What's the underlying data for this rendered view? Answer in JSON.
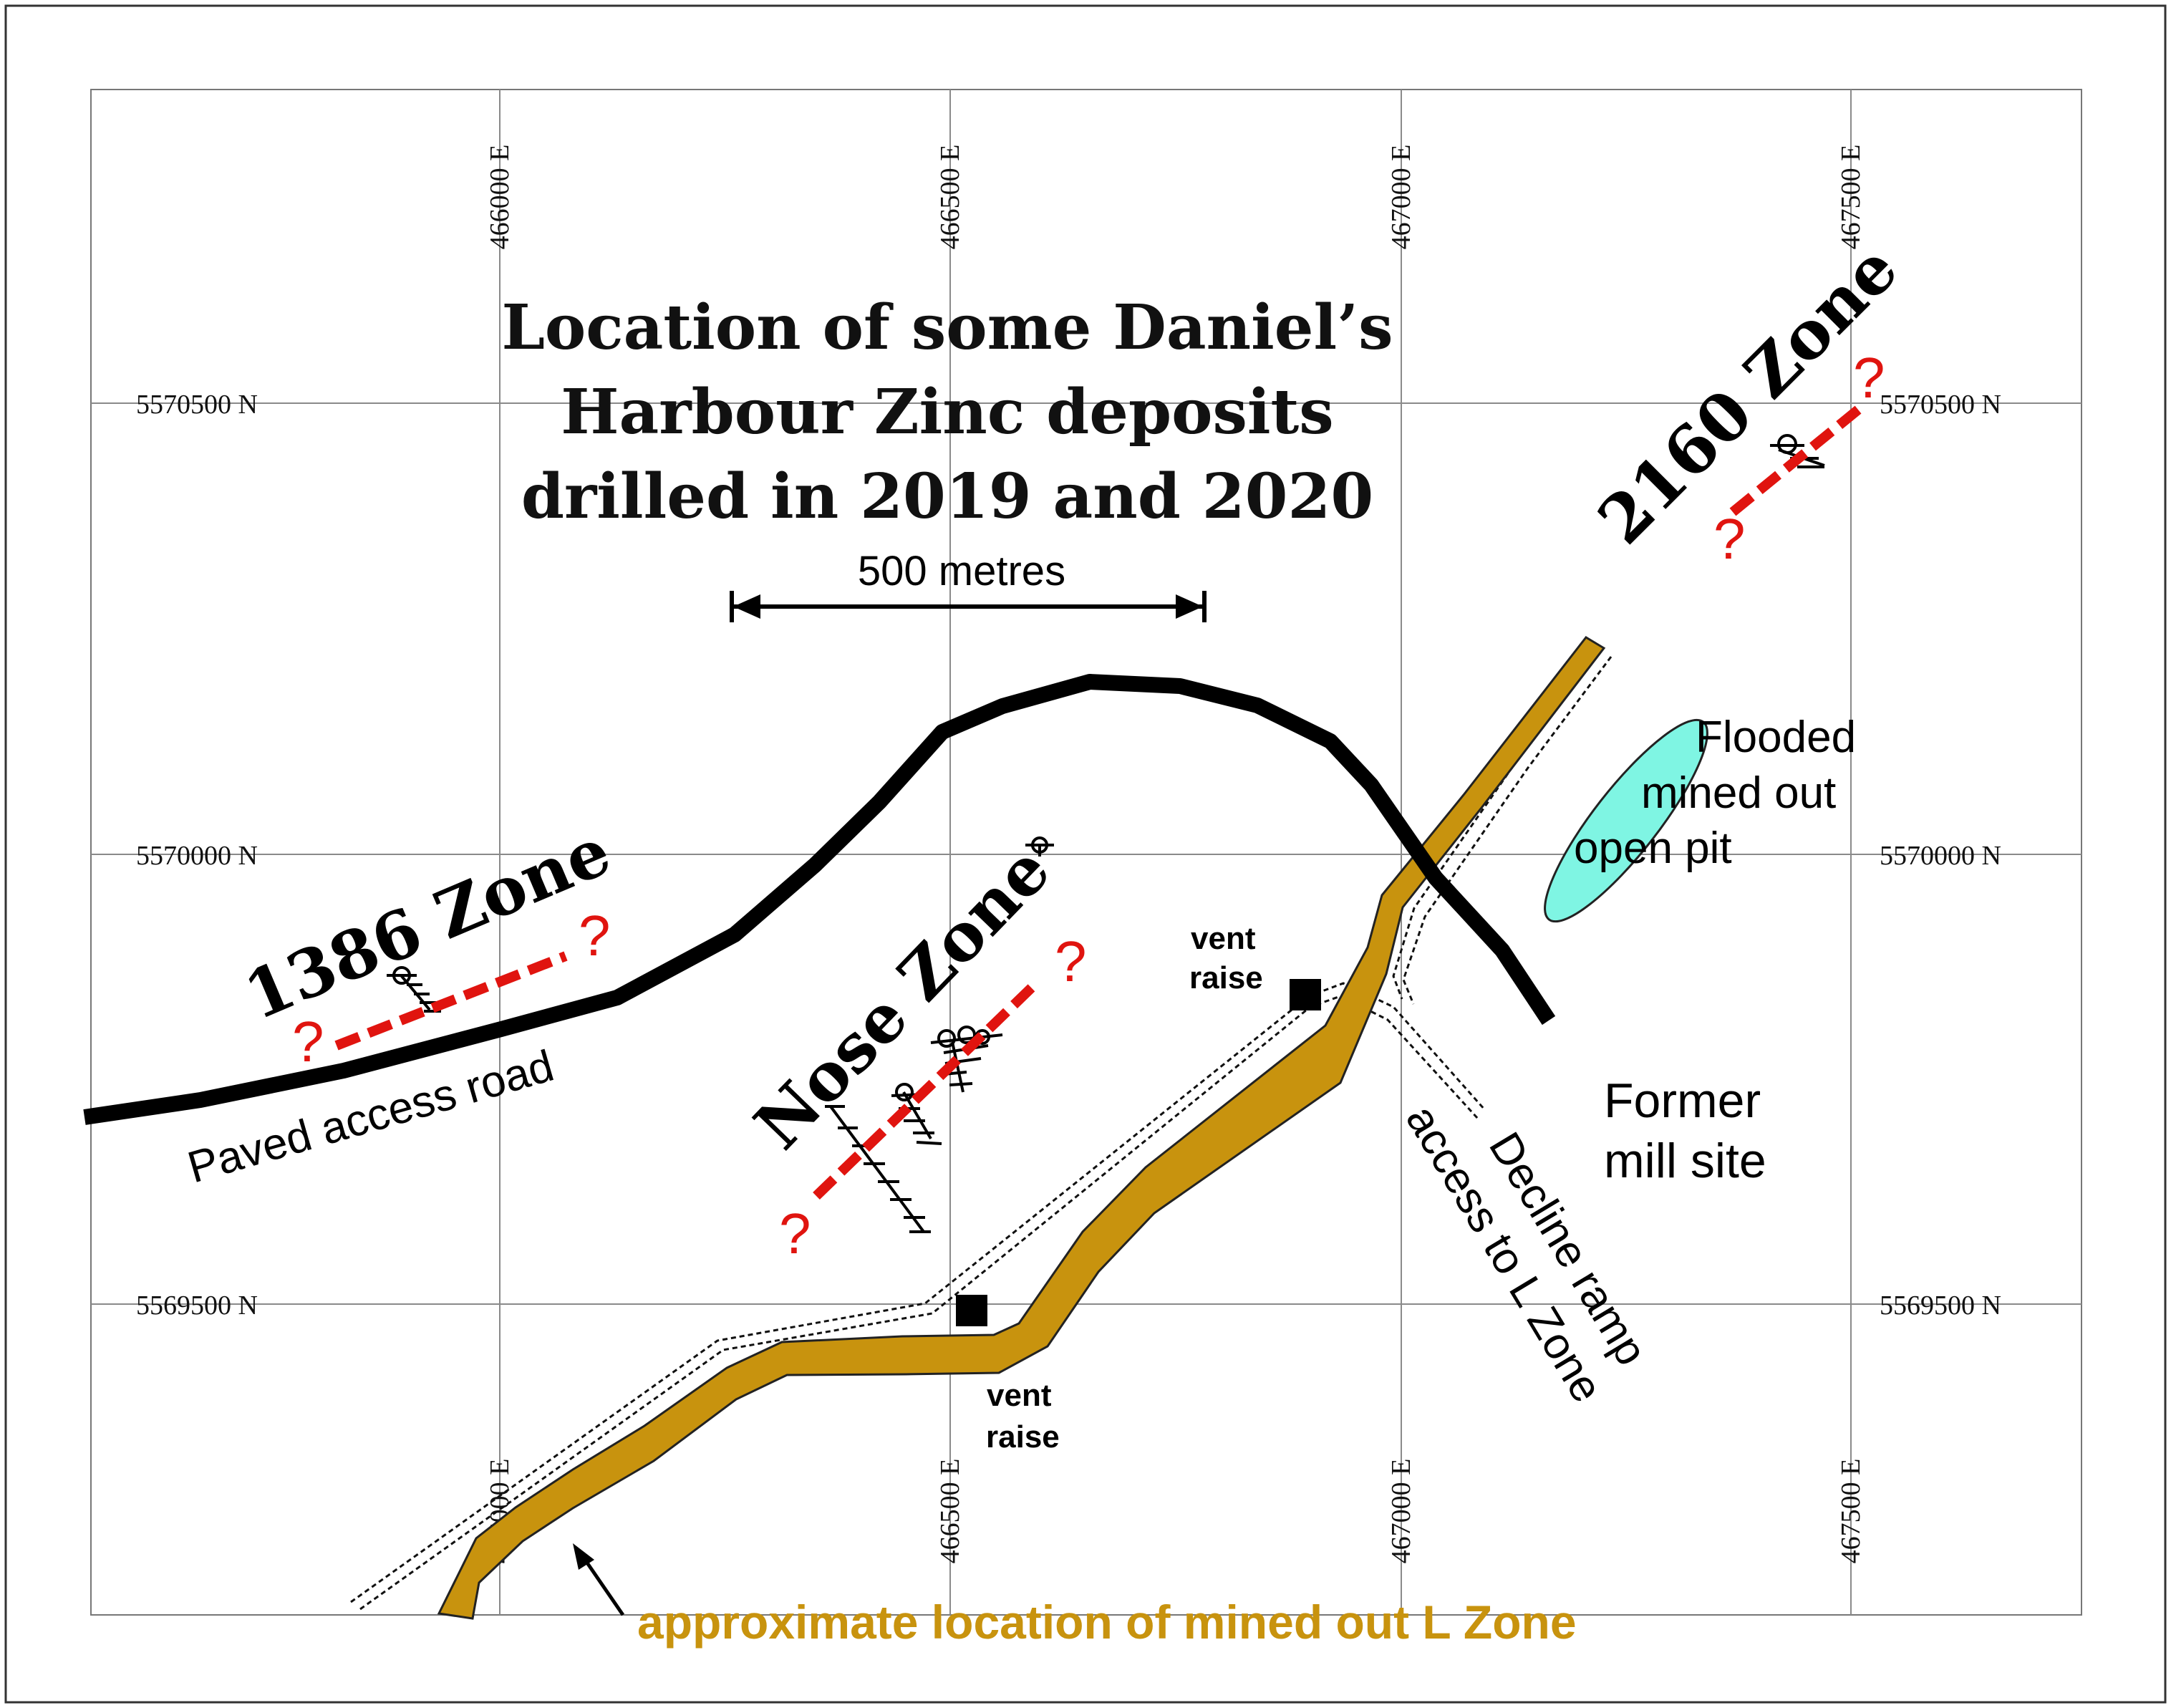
{
  "title": {
    "line1": "Location of some Daniel’s",
    "line2": "Harbour Zinc deposits",
    "line3": "drilled in 2019 and 2020"
  },
  "grid": {
    "eastings_top": [
      "466000 E",
      "466500 E",
      "467000 E",
      "467500 E"
    ],
    "eastings_bottom": [
      "466000 E",
      "466500 E",
      "467000 E",
      "467500 E"
    ],
    "northings_left": [
      "5570500 N",
      "5570000 N",
      "5569500 N"
    ],
    "northings_right": [
      "5570500 N",
      "5570000 N",
      "5569500 N"
    ]
  },
  "scale_bar": {
    "label": "500 metres"
  },
  "zones": {
    "zone_1386": "1386 Zone",
    "nose": "Nose Zone",
    "zone_2160": "2160 Zone",
    "question_mark": "?"
  },
  "labels": {
    "paved_road": "Paved access road",
    "pit_line1": "Flooded",
    "pit_line2": "mined out",
    "pit_line3": "open pit",
    "vent_raise_upper_1": "vent",
    "vent_raise_upper_2": "raise",
    "vent_raise_lower_1": "vent",
    "vent_raise_lower_2": "raise",
    "mill_line1": "Former",
    "mill_line2": "mill site",
    "decline_line1": "Decline ramp",
    "decline_line2": "access to L Zone",
    "l_zone": "approximate location of mined out L Zone"
  },
  "colors": {
    "l_zone_fill": "#c8930e",
    "l_zone_text": "#c8930e",
    "pit_fill": "#7ff5e3",
    "trend_line": "#e0140f",
    "road": "#000000"
  }
}
